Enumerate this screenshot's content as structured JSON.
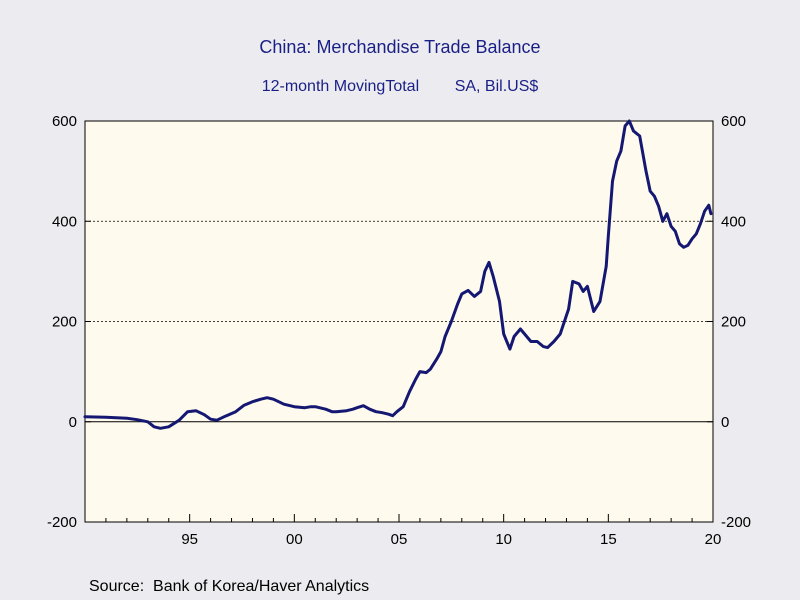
{
  "chart_data": {
    "type": "line",
    "title": "China: Merchandise Trade Balance",
    "subtitle_left": "12-month MovingTotal",
    "subtitle_right": "SA, Bil.US$",
    "ylim": [
      -200,
      600
    ],
    "yticks": [
      -200,
      0,
      200,
      400,
      600
    ],
    "xlim": [
      1990.0,
      2020.0
    ],
    "xticks": [
      {
        "year": 1995,
        "label": "95"
      },
      {
        "year": 2000,
        "label": "00"
      },
      {
        "year": 2005,
        "label": "05"
      },
      {
        "year": 2010,
        "label": "10"
      },
      {
        "year": 2015,
        "label": "15"
      },
      {
        "year": 2020,
        "label": "20"
      }
    ],
    "gridlines": [
      200,
      400
    ],
    "zero_line": true,
    "colors": {
      "line": "#141872",
      "plot_bg": "#fefaed",
      "page_bg": "#ececf0",
      "title": "#1a1f86"
    },
    "series": [
      {
        "x": [
          1990.0,
          1991.0,
          1992.0,
          1992.5,
          1993.0,
          1993.3,
          1993.6,
          1994.0,
          1994.5,
          1994.9,
          1995.3,
          1995.7,
          1996.0,
          1996.3,
          1996.7,
          1997.2,
          1997.6,
          1998.0,
          1998.4,
          1998.7,
          1999.0,
          1999.5,
          2000.0,
          2000.5,
          2000.8,
          2001.0,
          2001.5,
          2001.8,
          2002.0,
          2002.5,
          2002.8,
          2003.0,
          2003.3,
          2003.6,
          2003.9,
          2004.2,
          2004.5,
          2004.7,
          2004.9,
          2005.2,
          2005.5,
          2005.8,
          2006.0,
          2006.3,
          2006.5,
          2006.8,
          2007.0,
          2007.2,
          2007.5,
          2007.8,
          2008.0,
          2008.3,
          2008.6,
          2008.9,
          2009.1,
          2009.3,
          2009.5,
          2009.8,
          2010.0,
          2010.3,
          2010.5,
          2010.8,
          2011.0,
          2011.3,
          2011.6,
          2011.9,
          2012.1,
          2012.4,
          2012.7,
          2012.9,
          2013.1,
          2013.3,
          2013.6,
          2013.8,
          2014.0,
          2014.3,
          2014.6,
          2014.9,
          2015.0,
          2015.2,
          2015.4,
          2015.6,
          2015.8,
          2016.0,
          2016.2,
          2016.5,
          2016.8,
          2017.0,
          2017.2,
          2017.4,
          2017.6,
          2017.8,
          2018.0,
          2018.2,
          2018.4,
          2018.6,
          2018.8,
          2019.0,
          2019.2,
          2019.4,
          2019.6,
          2019.8,
          2019.9
        ],
        "y": [
          10,
          9,
          7,
          4,
          0,
          -10,
          -13,
          -10,
          3,
          20,
          22,
          14,
          5,
          3,
          11,
          20,
          33,
          40,
          45,
          48,
          45,
          35,
          30,
          28,
          30,
          30,
          25,
          20,
          20,
          22,
          25,
          28,
          32,
          25,
          20,
          18,
          15,
          12,
          20,
          30,
          60,
          85,
          100,
          98,
          105,
          125,
          140,
          170,
          200,
          235,
          255,
          262,
          250,
          260,
          300,
          318,
          290,
          240,
          175,
          145,
          170,
          185,
          175,
          160,
          160,
          150,
          148,
          160,
          175,
          200,
          225,
          280,
          275,
          260,
          270,
          220,
          240,
          310,
          370,
          480,
          520,
          540,
          590,
          600,
          580,
          570,
          500,
          460,
          450,
          430,
          400,
          415,
          390,
          380,
          355,
          348,
          352,
          365,
          375,
          395,
          420,
          432,
          415
        ]
      }
    ]
  },
  "source": "Source:  Bank of Korea/Haver Analytics"
}
